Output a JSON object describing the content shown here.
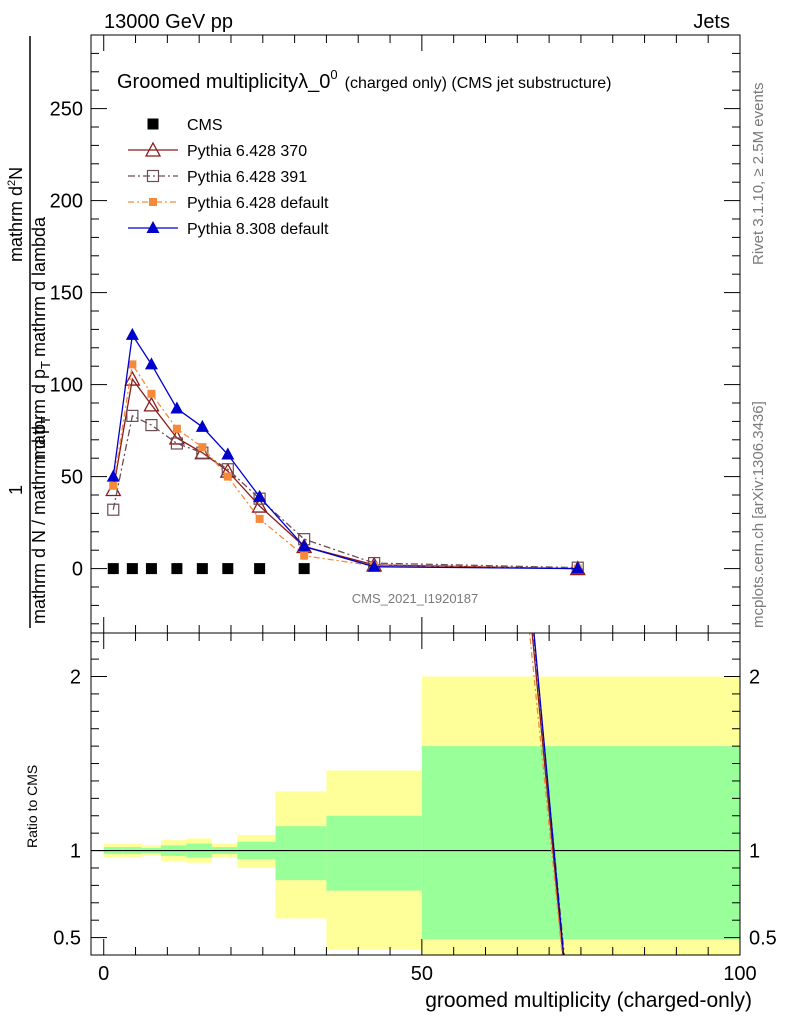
{
  "header": {
    "left": "13000 GeV pp",
    "right": "Jets"
  },
  "side": {
    "rivet": "Rivet 3.1.10, ≥ 2.5M events",
    "mcplots": "mcplots.cern.ch [arXiv:1306.3436]"
  },
  "watermark": "CMS_2021_I1920187",
  "chart_data": [
    {
      "type": "line",
      "title_main": "Groomed multiplicityλ_0",
      "title_sup": "0",
      "title_suffix": "(charged only) (CMS jet substructure)",
      "ylabel_parts": {
        "one": "1",
        "denominator": "mathrm d N / mathrm d p",
        "sub": "T",
        "numerator_dn": "mathrm d",
        "numerator_sup": "2",
        "numerator_n": "N",
        "numerator_rest": "mathrm d p",
        "numerator_rest2": "mathrm d lambda"
      },
      "xlim": [
        -2,
        100
      ],
      "ylim": [
        -35,
        290
      ],
      "yticks": [
        0,
        50,
        100,
        150,
        200,
        250
      ],
      "ytick_labels": [
        "0",
        "50",
        "100",
        "150",
        "200",
        "250"
      ],
      "legend_position": "top-left",
      "series": [
        {
          "name": "CMS",
          "color": "#000000",
          "marker": "square-filled",
          "x": [
            1.5,
            4.5,
            7.5,
            11.5,
            15.5,
            19.5,
            24.5,
            31.5
          ],
          "y": [
            0,
            0,
            0,
            0,
            0,
            0,
            0,
            0
          ]
        },
        {
          "name": "Pythia 6.428 370",
          "color": "#8b1a1a",
          "marker": "triangle-open",
          "dash": "",
          "x": [
            1.5,
            4.5,
            7.5,
            11.5,
            15.5,
            19.5,
            24.5,
            31.5,
            42.5,
            74.5
          ],
          "y": [
            43,
            103,
            89,
            71,
            63,
            53,
            34,
            12,
            2,
            0
          ]
        },
        {
          "name": "Pythia 6.428 391",
          "color": "#6b4c52",
          "marker": "square-open",
          "dash": "7,3,2,3",
          "x": [
            1.5,
            4.5,
            7.5,
            11.5,
            15.5,
            19.5,
            24.5,
            31.5,
            42.5,
            74.5
          ],
          "y": [
            32,
            83,
            78,
            68,
            63,
            54,
            38,
            16,
            3,
            0.5
          ]
        },
        {
          "name": "Pythia 6.428 default",
          "color": "#f58a3a",
          "marker": "square-filled-small",
          "dash": "6,3,2,3",
          "x": [
            1.5,
            4.5,
            7.5,
            11.5,
            15.5,
            19.5,
            24.5,
            31.5,
            42.5,
            74.5
          ],
          "y": [
            45,
            111,
            95,
            76,
            66,
            50,
            27,
            7,
            1.5,
            0
          ]
        },
        {
          "name": "Pythia 8.308 default",
          "color": "#0000cc",
          "marker": "triangle-filled",
          "dash": "",
          "x": [
            1.5,
            4.5,
            7.5,
            11.5,
            15.5,
            19.5,
            24.5,
            31.5,
            42.5,
            74.5
          ],
          "y": [
            50,
            127,
            111,
            87,
            77,
            62,
            39,
            12,
            1,
            0
          ]
        }
      ]
    },
    {
      "type": "line",
      "ylabel": "Ratio to CMS",
      "xlabel": "groomed multiplicity (charged-only)",
      "xlim": [
        -2,
        100
      ],
      "ylim": [
        0.4,
        2.25
      ],
      "xticks": [
        0,
        50,
        100
      ],
      "xtick_labels": [
        "0",
        "50",
        "100"
      ],
      "yticks": [
        0.5,
        1,
        2
      ],
      "ytick_labels": [
        "0.5",
        "1",
        "2"
      ],
      "bands": [
        {
          "x": [
            0,
            3
          ],
          "stat": [
            0.98,
            1.02
          ],
          "total": [
            0.96,
            1.04
          ]
        },
        {
          "x": [
            3,
            6
          ],
          "stat": [
            0.98,
            1.02
          ],
          "total": [
            0.96,
            1.04
          ]
        },
        {
          "x": [
            6,
            9
          ],
          "stat": [
            0.985,
            1.015
          ],
          "total": [
            0.97,
            1.03
          ]
        },
        {
          "x": [
            9,
            13
          ],
          "stat": [
            0.97,
            1.03
          ],
          "total": [
            0.94,
            1.06
          ]
        },
        {
          "x": [
            13,
            17
          ],
          "stat": [
            0.96,
            1.04
          ],
          "total": [
            0.93,
            1.07
          ]
        },
        {
          "x": [
            17,
            21
          ],
          "stat": [
            0.98,
            1.02
          ],
          "total": [
            0.96,
            1.04
          ]
        },
        {
          "x": [
            21,
            27
          ],
          "stat": [
            0.95,
            1.05
          ],
          "total": [
            0.9,
            1.09
          ]
        },
        {
          "x": [
            27,
            35
          ],
          "stat": [
            0.83,
            1.14
          ],
          "total": [
            0.61,
            1.34
          ]
        },
        {
          "x": [
            35,
            50
          ],
          "stat": [
            0.77,
            1.2
          ],
          "total": [
            0.43,
            1.46
          ]
        },
        {
          "x": [
            50,
            100
          ],
          "stat": [
            0.49,
            1.6
          ],
          "total": [
            0.35,
            2.0
          ]
        }
      ],
      "ratio_lines": [
        {
          "name": "Pythia 6.428 370",
          "x": [
            67.2,
            72.3
          ],
          "y": [
            2.3,
            0.35
          ]
        },
        {
          "name": "Pythia 6.428 391",
          "x": [
            67.4,
            72.5
          ],
          "y": [
            2.3,
            0.35
          ]
        },
        {
          "name": "Pythia 6.428 default",
          "x": [
            66.8,
            72.2
          ],
          "y": [
            2.3,
            0.35
          ]
        },
        {
          "name": "Pythia 8.308 default",
          "x": [
            67.5,
            72.4
          ],
          "y": [
            2.3,
            0.35
          ]
        }
      ]
    }
  ]
}
